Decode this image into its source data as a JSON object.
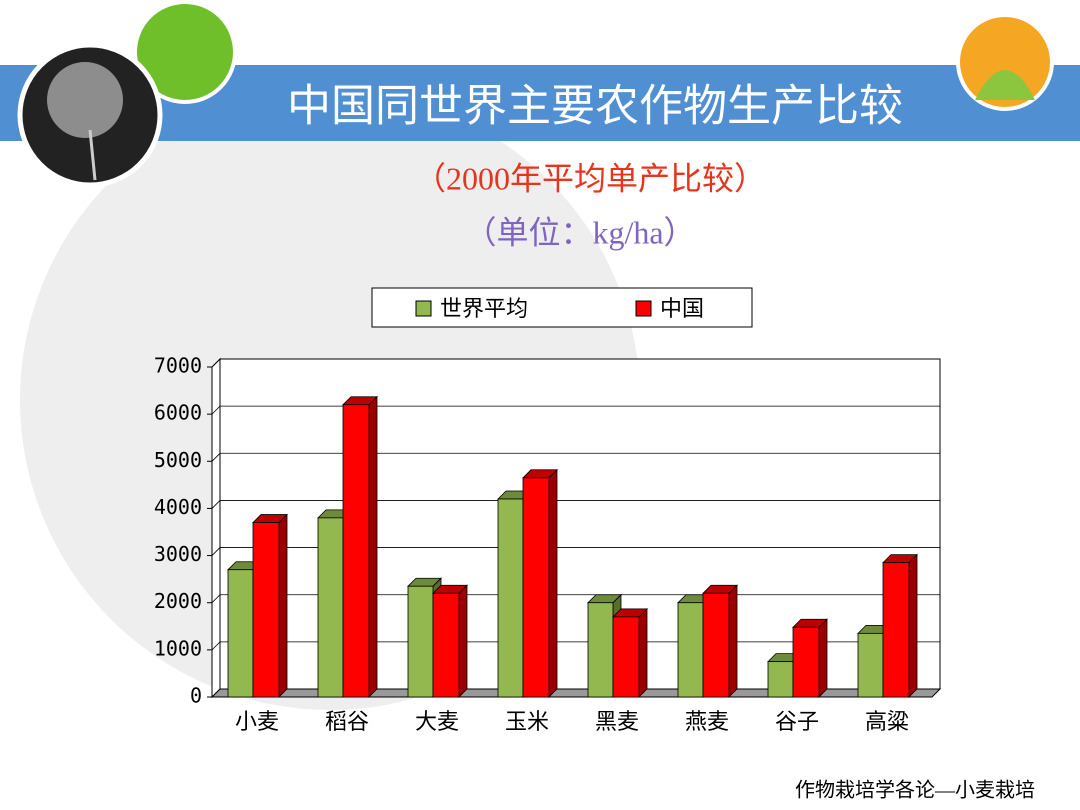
{
  "chart_data": {
    "type": "bar3d",
    "title": "中国同世界主要农作物生产比较",
    "subtitle": "（2000年平均单产比较）",
    "unit_note": "（单位：kg/ha）",
    "categories": [
      "小麦",
      "稻谷",
      "大麦",
      "玉米",
      "黑麦",
      "燕麦",
      "谷子",
      "高粱"
    ],
    "series": [
      {
        "name": "世界平均",
        "color": "#92b84f",
        "values": [
          2700,
          3800,
          2350,
          4200,
          2000,
          2000,
          750,
          1350
        ]
      },
      {
        "name": "中国",
        "color": "#ff0000",
        "values": [
          3700,
          6200,
          2200,
          4650,
          1700,
          2200,
          1480,
          2850
        ]
      }
    ],
    "ylim": [
      0,
      7000
    ],
    "yticks": [
      0,
      1000,
      2000,
      3000,
      4000,
      5000,
      6000,
      7000
    ],
    "grid": true
  },
  "footer": "作物栽培学各论—小麦栽培"
}
